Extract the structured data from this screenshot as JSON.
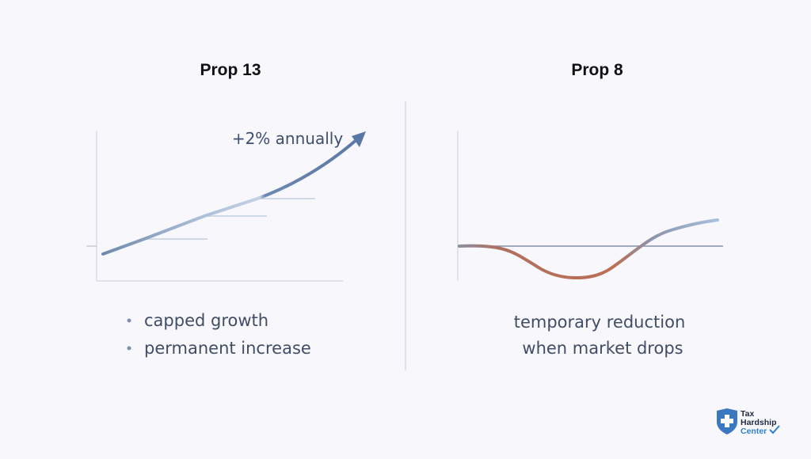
{
  "left_panel": {
    "title": "Prop 13",
    "annotation": "+2% annually",
    "bullets": [
      "capped growth",
      "permanent increase"
    ]
  },
  "right_panel": {
    "title": "Prop 8",
    "caption": [
      "temporary reduction",
      "when market drops"
    ]
  },
  "logo": {
    "lines": [
      "Tax",
      "Hardship",
      "Center"
    ]
  }
}
